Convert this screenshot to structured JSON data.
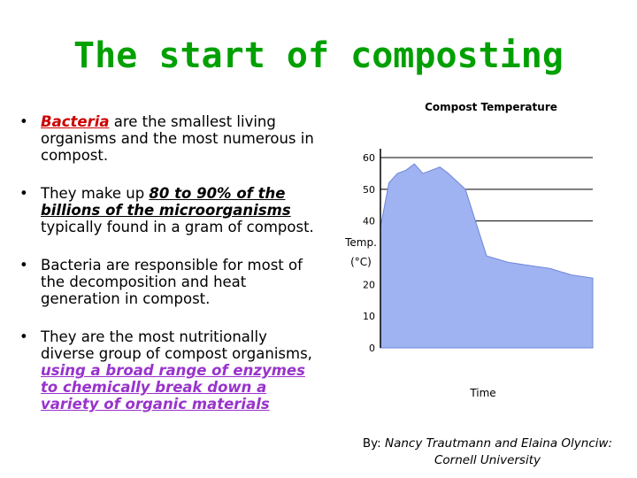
{
  "slide": {
    "title": "The start of composting",
    "bullets": [
      {
        "a": "Bacteria",
        "b": " are the smallest living organisms and the most numerous in compost."
      },
      {
        "a": "They make up ",
        "b": "80 to 90% of the billions of the microorganisms",
        "c": " typically found in a gram of compost."
      },
      {
        "a": "Bacteria are responsible for most of the decomposition and heat generation in compost."
      },
      {
        "a": "They are the most nutritionally diverse group of compost organisms, ",
        "b": "using a broad range of enzymes to chemically break down a variety of organic materials"
      }
    ],
    "credit_by": "By: ",
    "credit_names": "Nancy Trautmann and Elaina Olynciw:",
    "credit_org": "Cornell University"
  },
  "chart_data": {
    "type": "area",
    "title": "Compost Temperature",
    "xlabel": "Time",
    "ylabel": "Temp.\n(°C)",
    "yticks": [
      0,
      10,
      20,
      40,
      50,
      60
    ],
    "ylim": [
      0,
      60
    ],
    "grid": true,
    "color": "#9fb3f2",
    "x": [
      0,
      4,
      8,
      12,
      16,
      20,
      24,
      28,
      32,
      40,
      50,
      60,
      70,
      80,
      90,
      100
    ],
    "y": [
      38,
      52,
      55,
      56,
      58,
      55,
      56,
      57,
      55,
      50,
      29,
      27,
      26,
      25,
      23,
      22
    ]
  }
}
